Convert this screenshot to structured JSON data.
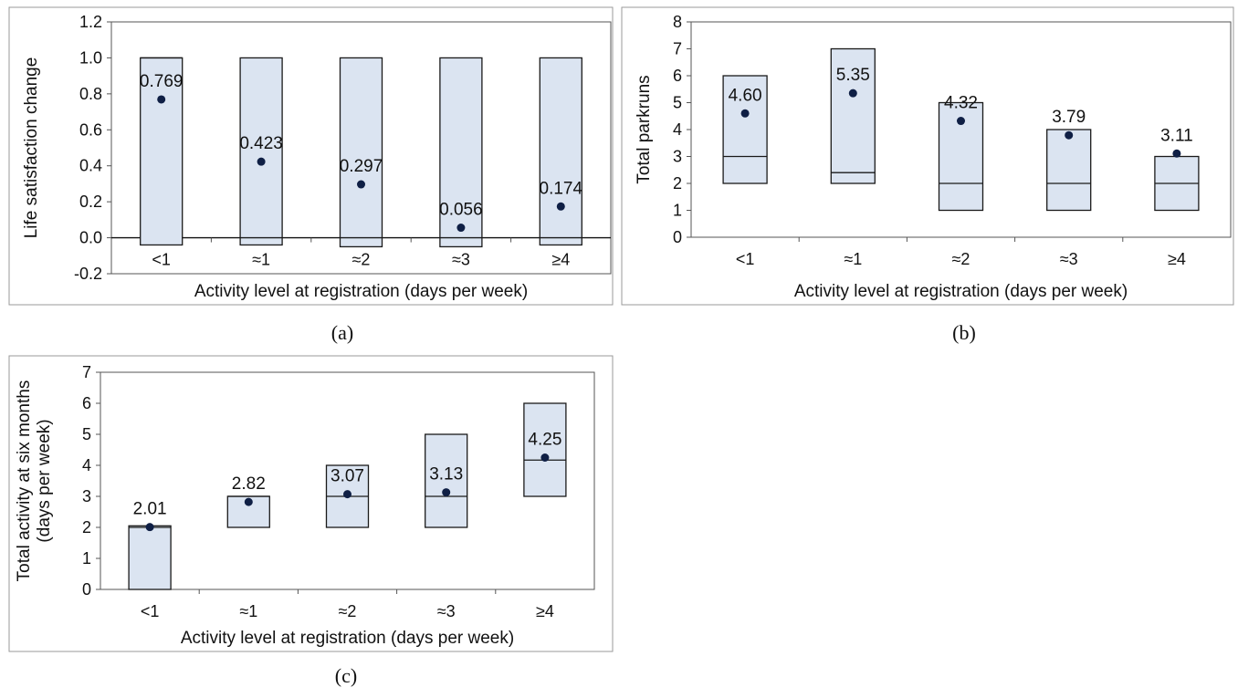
{
  "chart_data": [
    {
      "type": "box",
      "panel_label": "(a)",
      "categories": [
        "<1",
        "≈1",
        "≈2",
        "≈3",
        "≥4"
      ],
      "ylabel": "Life satisfaction change",
      "xlabel": "Activity level at registration (days per week)",
      "ylim": [
        -0.2,
        1.2
      ],
      "yticks": [
        "-0.2",
        "0.0",
        "0.2",
        "0.4",
        "0.6",
        "0.8",
        "1.0",
        "1.2"
      ],
      "ytick_values": [
        -0.2,
        0.0,
        0.2,
        0.4,
        0.6,
        0.8,
        1.0,
        1.2
      ],
      "zero_line": true,
      "boxes": [
        {
          "low": -0.04,
          "high": 1.0,
          "median": 1.0
        },
        {
          "low": -0.04,
          "high": 1.0,
          "median": 0.0
        },
        {
          "low": -0.05,
          "high": 1.0,
          "median": 0.0
        },
        {
          "low": -0.05,
          "high": 1.0,
          "median": 0.0
        },
        {
          "low": -0.04,
          "high": 1.0,
          "median": 0.0
        }
      ],
      "means": [
        0.769,
        0.423,
        0.297,
        0.056,
        0.174
      ],
      "mean_labels": [
        "0.769",
        "0.423",
        "0.297",
        "0.056",
        "0.174"
      ]
    },
    {
      "type": "box",
      "panel_label": "(b)",
      "categories": [
        "<1",
        "≈1",
        "≈2",
        "≈3",
        "≥4"
      ],
      "ylabel": "Total parkruns",
      "xlabel": "Activity level at registration (days per week)",
      "ylim": [
        0,
        8
      ],
      "yticks": [
        "0",
        "1",
        "2",
        "3",
        "4",
        "5",
        "6",
        "7",
        "8"
      ],
      "ytick_values": [
        0,
        1,
        2,
        3,
        4,
        5,
        6,
        7,
        8
      ],
      "zero_line": false,
      "boxes": [
        {
          "low": 2,
          "high": 6,
          "median": 3
        },
        {
          "low": 2,
          "high": 7,
          "median": 2.4
        },
        {
          "low": 1,
          "high": 5,
          "median": 2
        },
        {
          "low": 1,
          "high": 4,
          "median": 2
        },
        {
          "low": 1,
          "high": 3,
          "median": 2
        }
      ],
      "means": [
        4.6,
        5.35,
        4.32,
        3.79,
        3.11
      ],
      "mean_labels": [
        "4.60",
        "5.35",
        "4.32",
        "3.79",
        "3.11"
      ]
    },
    {
      "type": "box",
      "panel_label": "(c)",
      "categories": [
        "<1",
        "≈1",
        "≈2",
        "≈3",
        "≥4"
      ],
      "ylabel_lines": [
        "Total activity at six months",
        "(days per week)"
      ],
      "xlabel": "Activity level at registration (days per week)",
      "ylim": [
        0,
        7
      ],
      "yticks": [
        "0",
        "1",
        "2",
        "3",
        "4",
        "5",
        "6",
        "7"
      ],
      "ytick_values": [
        0,
        1,
        2,
        3,
        4,
        5,
        6,
        7
      ],
      "zero_line": false,
      "boxes": [
        {
          "low": 0,
          "high": 2.05,
          "median": 2.0
        },
        {
          "low": 2,
          "high": 3,
          "median": 3
        },
        {
          "low": 2,
          "high": 4,
          "median": 3
        },
        {
          "low": 2,
          "high": 5,
          "median": 3
        },
        {
          "low": 3,
          "high": 6,
          "median": 4.17
        }
      ],
      "means": [
        2.01,
        2.82,
        3.07,
        3.13,
        4.25
      ],
      "mean_labels": [
        "2.01",
        "2.82",
        "3.07",
        "3.13",
        "4.25"
      ]
    }
  ],
  "colors": {
    "box_fill": "#dbe4f1",
    "box_stroke": "#1a1a1a",
    "mean_marker": "#0f1f45",
    "frame": "#555555"
  }
}
